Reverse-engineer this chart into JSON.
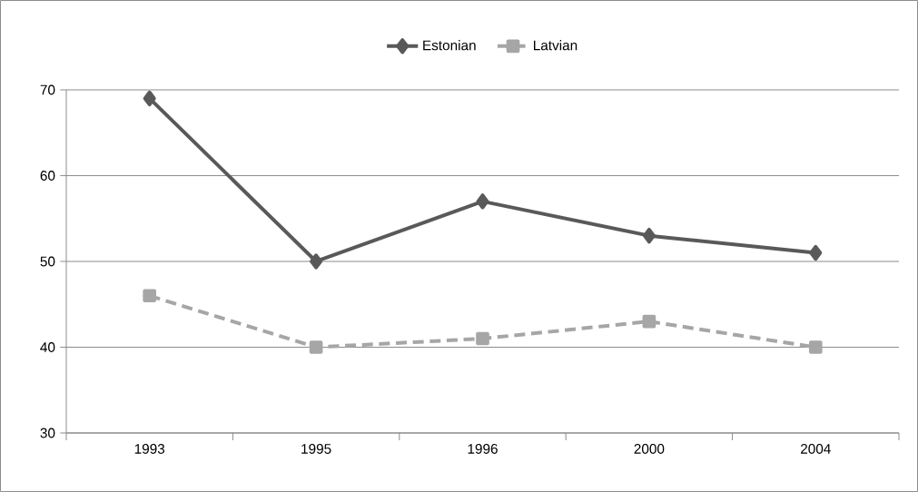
{
  "chart_data": {
    "type": "line",
    "categories": [
      "1993",
      "1995",
      "1996",
      "2000",
      "2004"
    ],
    "series": [
      {
        "name": "Estonian",
        "color": "#595959",
        "values": [
          69,
          50,
          57,
          53,
          51
        ],
        "marker": "diamond",
        "line_style": "solid"
      },
      {
        "name": "Latvian",
        "color": "#a6a6a6",
        "values": [
          46,
          40,
          41,
          43,
          40
        ],
        "marker": "square",
        "line_style": "dashed"
      }
    ],
    "ylim": [
      30,
      70
    ],
    "yticks": [
      30,
      40,
      50,
      60,
      70
    ],
    "grid": "y",
    "legend": "top"
  }
}
